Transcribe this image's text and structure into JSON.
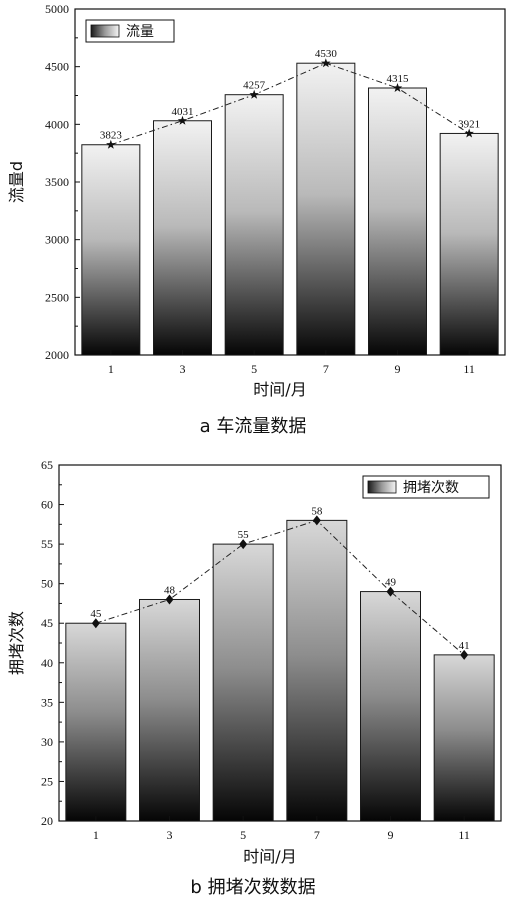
{
  "chart_data": [
    {
      "type": "bar",
      "caption": "a   车流量数据",
      "categories": [
        "1",
        "3",
        "5",
        "7",
        "9",
        "11"
      ],
      "series": [
        {
          "name": "流量",
          "values": [
            3823,
            4031,
            4257,
            4530,
            4315,
            3921
          ]
        }
      ],
      "data_labels": [
        "3823",
        "4031",
        "4257",
        "4530",
        "4315",
        "3921"
      ],
      "line_overlay": {
        "style": "dash-dot",
        "marker": "star"
      },
      "xlabel": "时间/月",
      "ylabel": "流量d",
      "ylim": [
        2000,
        5000
      ],
      "yticks": [
        "2000",
        "2500",
        "3000",
        "3500",
        "4000",
        "4500",
        "5000"
      ],
      "legend_position": "top-left",
      "grid": false
    },
    {
      "type": "bar",
      "caption": "b  拥堵次数数据",
      "categories": [
        "1",
        "3",
        "5",
        "7",
        "9",
        "11"
      ],
      "series": [
        {
          "name": "拥堵次数",
          "values": [
            45,
            48,
            55,
            58,
            49,
            41
          ]
        }
      ],
      "data_labels": [
        "45",
        "48",
        "55",
        "58",
        "49",
        "41"
      ],
      "line_overlay": {
        "style": "dash-dot",
        "marker": "diamond"
      },
      "xlabel": "时间/月",
      "ylabel": "拥堵次数",
      "ylim": [
        20,
        65
      ],
      "yticks": [
        "20",
        "25",
        "30",
        "35",
        "40",
        "45",
        "50",
        "55",
        "60",
        "65"
      ],
      "legend_position": "top-right",
      "grid": false
    }
  ]
}
